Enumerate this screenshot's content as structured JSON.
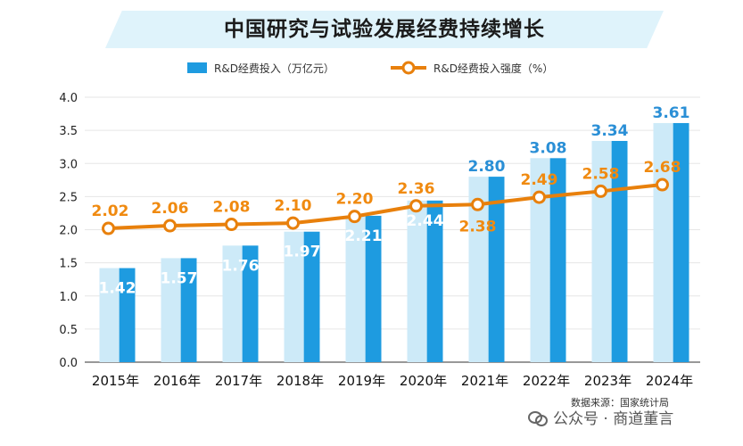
{
  "title": "中国研究与试验发展经费持续增长",
  "source": "数据来源：国家统计局",
  "watermark": "公众号 · 商道董言",
  "colors": {
    "bar": "#1e9be0",
    "bar_light": "#cdeaf8",
    "line": "#e8800c",
    "banner": "#dff3fb"
  },
  "chart_data": {
    "type": "bar",
    "categories": [
      "2015年",
      "2016年",
      "2017年",
      "2018年",
      "2019年",
      "2020年",
      "2021年",
      "2022年",
      "2023年",
      "2024年"
    ],
    "series": [
      {
        "name": "R&D经费投入（万亿元）",
        "type": "bar",
        "values": [
          1.42,
          1.57,
          1.76,
          1.97,
          2.21,
          2.44,
          2.8,
          3.08,
          3.34,
          3.61
        ],
        "labels": [
          "1.42",
          "1.57",
          "1.76",
          "1.97",
          "2.21",
          "2.44",
          "2.80",
          "3.08",
          "3.34",
          "3.61"
        ]
      },
      {
        "name": "R&D经费投入强度（%）",
        "type": "line",
        "values": [
          2.02,
          2.06,
          2.08,
          2.1,
          2.2,
          2.36,
          2.38,
          2.49,
          2.58,
          2.68
        ],
        "labels": [
          "2.02",
          "2.06",
          "2.08",
          "2.10",
          "2.20",
          "2.36",
          "2.38",
          "2.49",
          "2.58",
          "2.68"
        ]
      }
    ],
    "ylim": [
      0,
      4.0
    ],
    "yticks": [
      "0.0",
      "0.5",
      "1.0",
      "1.5",
      "2.0",
      "2.5",
      "3.0",
      "3.5",
      "4.0"
    ],
    "legend_position": "top",
    "grid": true
  }
}
